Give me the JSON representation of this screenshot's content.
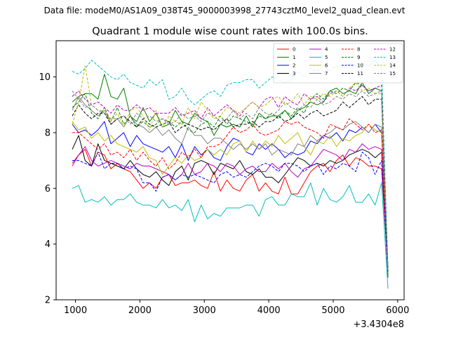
{
  "suptitle": "Data file: modeM0/AS1A09_038T45_9000003998_27743cztM0_level2_quad_clean.evt",
  "chart_data": {
    "type": "line",
    "title": "Quadrant 1 module wise count rates with 100.0s bins.",
    "xlabel": "",
    "ylabel": "",
    "x_offset_label": "+3.4304e8",
    "xlim": [
      700,
      6100
    ],
    "ylim": [
      2,
      11.3
    ],
    "xticks": [
      1000,
      2000,
      3000,
      4000,
      5000,
      6000
    ],
    "xtick_labels": [
      "1000",
      "2000",
      "3000",
      "4000",
      "5000",
      "6000"
    ],
    "yticks": [
      2,
      4,
      6,
      8,
      10
    ],
    "ytick_labels": [
      "2",
      "4",
      "6",
      "8",
      "10"
    ],
    "grid": false,
    "legend_position": "top-right",
    "x": [
      950,
      1050,
      1150,
      1250,
      1350,
      1450,
      1550,
      1650,
      1750,
      1850,
      1950,
      2050,
      2150,
      2250,
      2350,
      2450,
      2550,
      2650,
      2750,
      2850,
      2950,
      3050,
      3150,
      3250,
      3350,
      3450,
      3550,
      3650,
      3750,
      3850,
      3950,
      4050,
      4150,
      4250,
      4350,
      4450,
      4550,
      4650,
      4750,
      4850,
      4950,
      5050,
      5150,
      5250,
      5350,
      5450,
      5550,
      5650,
      5750,
      5850
    ],
    "series": [
      {
        "name": "0",
        "color": "#ff0000",
        "dash": "solid",
        "values": [
          6.9,
          7.2,
          7.4,
          6.8,
          7.3,
          7.2,
          6.7,
          6.9,
          6.7,
          6.6,
          6.3,
          6.0,
          6.2,
          6.0,
          6.4,
          6.5,
          6.1,
          6.2,
          6.2,
          6.3,
          6.1,
          6.0,
          6.6,
          5.9,
          6.3,
          6.0,
          5.9,
          6.3,
          6.5,
          5.9,
          6.2,
          5.9,
          5.8,
          6.4,
          5.8,
          5.8,
          6.2,
          6.6,
          6.8,
          6.9,
          6.6,
          7.0,
          7.2,
          6.8,
          7.1,
          7.0,
          6.8,
          6.8,
          6.7,
          3.1
        ]
      },
      {
        "name": "1",
        "color": "#008000",
        "dash": "solid",
        "values": [
          9.1,
          9.3,
          9.4,
          9.4,
          9.2,
          10.1,
          9.3,
          9.2,
          9.6,
          8.6,
          8.4,
          8.9,
          8.4,
          8.7,
          8.2,
          8.3,
          8.8,
          8.4,
          8.3,
          8.7,
          8.5,
          8.4,
          7.9,
          8.3,
          8.2,
          8.3,
          8.2,
          8.6,
          8.2,
          8.7,
          8.5,
          8.6,
          8.6,
          8.8,
          8.5,
          8.8,
          8.9,
          9.1,
          9.0,
          9.1,
          9.5,
          9.6,
          9.4,
          9.5,
          9.4,
          9.8,
          9.4,
          9.6,
          9.5,
          2.8
        ]
      },
      {
        "name": "2",
        "color": "#0000ff",
        "dash": "solid",
        "values": [
          8.3,
          8.0,
          8.1,
          7.9,
          8.1,
          8.4,
          7.6,
          7.8,
          8.0,
          7.5,
          7.9,
          7.6,
          7.5,
          7.4,
          7.3,
          7.5,
          7.1,
          7.6,
          7.0,
          7.5,
          7.2,
          7.4,
          7.1,
          7.0,
          7.5,
          7.8,
          7.7,
          7.3,
          7.2,
          7.6,
          7.4,
          7.6,
          7.4,
          7.1,
          7.3,
          7.2,
          7.3,
          7.7,
          7.6,
          7.9,
          7.8,
          8.0,
          7.7,
          8.1,
          8.0,
          8.2,
          8.0,
          8.3,
          8.0,
          2.9
        ]
      },
      {
        "name": "3",
        "color": "#000000",
        "dash": "solid",
        "values": [
          7.4,
          7.9,
          7.0,
          6.8,
          7.6,
          7.0,
          6.9,
          6.8,
          6.7,
          7.0,
          6.7,
          6.5,
          6.4,
          6.6,
          6.3,
          6.1,
          6.6,
          6.8,
          6.3,
          6.9,
          7.0,
          6.9,
          6.5,
          6.9,
          6.8,
          6.7,
          7.0,
          6.6,
          6.5,
          6.7,
          6.4,
          6.4,
          6.2,
          6.5,
          6.8,
          7.1,
          7.0,
          6.8,
          6.9,
          6.8,
          7.0,
          6.9,
          7.0,
          7.2,
          7.3,
          7.4,
          7.3,
          7.1,
          7.3,
          2.9
        ]
      },
      {
        "name": "4",
        "color": "#bf00bf",
        "dash": "solid",
        "values": [
          6.8,
          7.2,
          7.5,
          7.0,
          6.8,
          6.9,
          7.0,
          6.9,
          6.8,
          6.7,
          6.9,
          6.8,
          6.8,
          6.7,
          6.6,
          6.5,
          6.3,
          6.5,
          6.9,
          6.5,
          6.6,
          6.9,
          6.8,
          6.6,
          6.9,
          6.8,
          6.5,
          6.7,
          6.8,
          6.6,
          6.6,
          6.9,
          6.7,
          6.9,
          6.6,
          6.4,
          6.7,
          6.8,
          7.1,
          7.4,
          7.3,
          7.2,
          7.0,
          7.4,
          7.3,
          7.6,
          7.4,
          7.5,
          7.4,
          2.8
        ]
      },
      {
        "name": "5",
        "color": "#00bfbf",
        "dash": "solid",
        "values": [
          6.0,
          6.1,
          5.5,
          5.6,
          5.5,
          5.7,
          5.4,
          5.6,
          5.6,
          5.8,
          5.5,
          5.4,
          5.4,
          5.3,
          5.6,
          5.3,
          5.4,
          5.2,
          5.6,
          4.8,
          5.4,
          4.9,
          5.1,
          5.0,
          5.3,
          5.3,
          5.3,
          5.4,
          5.4,
          5.0,
          5.6,
          5.7,
          5.4,
          5.4,
          5.8,
          5.7,
          5.7,
          6.2,
          5.4,
          6.0,
          5.6,
          5.5,
          5.7,
          6.1,
          5.5,
          5.5,
          5.8,
          5.4,
          6.2,
          2.4
        ]
      },
      {
        "name": "6",
        "color": "#bfbf00",
        "dash": "solid",
        "values": [
          8.4,
          8.1,
          8.2,
          7.8,
          8.0,
          7.7,
          7.9,
          7.6,
          7.5,
          7.4,
          7.3,
          7.5,
          7.1,
          7.0,
          6.5,
          6.8,
          7.1,
          6.9,
          7.2,
          7.0,
          7.1,
          7.4,
          7.2,
          7.4,
          7.2,
          7.6,
          7.7,
          7.3,
          7.7,
          7.4,
          7.7,
          7.5,
          7.9,
          7.6,
          7.8,
          8.0,
          7.5,
          7.2,
          7.7,
          7.6,
          7.9,
          7.5,
          7.8,
          7.7,
          7.9,
          8.0,
          8.3,
          8.1,
          8.0,
          2.9
        ]
      },
      {
        "name": "7",
        "color": "#808080",
        "dash": "solid",
        "values": [
          8.8,
          9.3,
          9.0,
          8.8,
          8.6,
          8.8,
          8.3,
          8.5,
          8.2,
          8.6,
          8.3,
          8.2,
          8.0,
          8.2,
          7.9,
          8.1,
          7.8,
          7.6,
          8.2,
          7.9,
          7.9,
          7.6,
          7.8,
          7.8,
          7.6,
          7.4,
          7.6,
          7.4,
          7.6,
          7.4,
          7.6,
          7.2,
          7.4,
          7.3,
          7.2,
          7.6,
          7.5,
          7.9,
          7.7,
          7.9,
          8.0,
          8.2,
          8.1,
          8.3,
          8.4,
          8.2,
          8.0,
          8.3,
          8.2,
          3.0
        ]
      },
      {
        "name": "8",
        "color": "#ff0000",
        "dash": "dashed",
        "values": [
          8.0,
          8.0,
          7.8,
          7.6,
          7.4,
          7.6,
          7.2,
          7.3,
          7.1,
          7.4,
          7.0,
          7.3,
          7.0,
          6.8,
          7.1,
          6.7,
          6.9,
          7.3,
          7.1,
          7.4,
          7.1,
          7.5,
          7.5,
          7.6,
          7.9,
          8.2,
          8.0,
          8.1,
          8.3,
          8.0,
          7.9,
          8.0,
          8.1,
          8.4,
          8.3,
          8.4,
          8.2,
          8.1,
          8.0,
          7.8,
          8.3,
          8.2,
          8.1,
          8.5,
          8.3,
          8.1,
          8.3,
          8.0,
          8.1,
          3.0
        ]
      },
      {
        "name": "9",
        "color": "#008000",
        "dash": "dashed",
        "values": [
          8.9,
          9.1,
          9.4,
          8.7,
          8.5,
          8.9,
          8.4,
          8.9,
          8.3,
          8.6,
          8.2,
          8.4,
          8.2,
          8.3,
          8.5,
          8.4,
          8.2,
          8.4,
          8.1,
          8.0,
          8.3,
          8.4,
          8.2,
          8.6,
          8.3,
          8.6,
          8.5,
          8.4,
          8.3,
          8.6,
          8.5,
          8.7,
          8.5,
          8.8,
          8.6,
          8.9,
          8.7,
          9.2,
          9.4,
          9.2,
          9.5,
          9.4,
          9.6,
          9.5,
          9.8,
          9.7,
          9.5,
          9.6,
          9.5,
          2.9
        ]
      },
      {
        "name": "10",
        "color": "#0000ff",
        "dash": "dashed",
        "values": [
          7.0,
          7.0,
          6.9,
          6.8,
          7.3,
          6.7,
          6.9,
          6.9,
          6.7,
          6.8,
          6.7,
          6.2,
          6.2,
          5.9,
          6.4,
          6.5,
          6.3,
          6.5,
          6.4,
          6.5,
          6.4,
          6.3,
          6.2,
          6.5,
          6.6,
          6.4,
          6.5,
          6.4,
          6.6,
          6.8,
          6.9,
          6.8,
          6.6,
          6.9,
          6.9,
          6.8,
          6.6,
          6.8,
          6.9,
          6.5,
          6.8,
          6.7,
          6.9,
          6.8,
          6.6,
          7.3,
          7.1,
          6.5,
          7.0,
          3.0
        ]
      },
      {
        "name": "11",
        "color": "#000000",
        "dash": "dashed",
        "values": [
          8.6,
          9.0,
          8.7,
          8.5,
          8.7,
          8.7,
          8.3,
          8.5,
          8.6,
          8.4,
          8.2,
          8.5,
          8.3,
          8.2,
          8.3,
          8.4,
          8.0,
          8.2,
          8.3,
          8.2,
          8.1,
          8.2,
          8.1,
          8.3,
          8.5,
          8.2,
          8.3,
          8.3,
          8.4,
          8.2,
          8.4,
          8.4,
          8.6,
          8.4,
          8.5,
          8.7,
          8.5,
          8.7,
          8.8,
          8.6,
          8.7,
          8.8,
          9.1,
          8.9,
          9.1,
          9.3,
          9.0,
          9.2,
          9.2,
          3.0
        ]
      },
      {
        "name": "12",
        "color": "#bf00bf",
        "dash": "dashed",
        "values": [
          9.3,
          9.5,
          9.2,
          9.0,
          9.1,
          8.9,
          8.7,
          9.0,
          8.8,
          8.8,
          9.0,
          8.8,
          8.9,
          8.7,
          8.7,
          8.7,
          8.9,
          8.6,
          8.7,
          8.8,
          8.5,
          8.9,
          8.6,
          8.8,
          9.0,
          8.8,
          8.6,
          8.9,
          9.1,
          8.9,
          9.2,
          9.3,
          8.9,
          9.3,
          9.1,
          9.0,
          9.4,
          9.2,
          9.3,
          9.1,
          9.4,
          9.5,
          9.3,
          9.6,
          9.5,
          9.7,
          9.5,
          9.6,
          9.7,
          3.1
        ]
      },
      {
        "name": "13",
        "color": "#00bfbf",
        "dash": "dashed",
        "values": [
          10.2,
          10.1,
          10.3,
          10.6,
          10.4,
          10.2,
          10.0,
          9.9,
          10.1,
          9.8,
          9.7,
          9.6,
          9.9,
          9.7,
          9.9,
          9.2,
          9.3,
          9.6,
          9.2,
          9.0,
          9.2,
          9.4,
          9.5,
          9.3,
          9.7,
          9.8,
          9.8,
          9.9,
          9.9,
          9.6,
          9.8,
          10.0,
          9.9,
          9.8,
          9.9,
          10.2,
          10.0,
          10.3,
          10.2,
          10.4,
          10.2,
          10.4,
          10.3,
          10.5,
          10.4,
          10.5,
          10.4,
          10.6,
          10.3,
          3.2
        ]
      },
      {
        "name": "14",
        "color": "#bfbf00",
        "dash": "dashed",
        "values": [
          8.3,
          9.1,
          10.4,
          9.0,
          8.8,
          8.8,
          8.4,
          8.7,
          8.2,
          8.8,
          8.9,
          8.6,
          8.1,
          8.8,
          8.2,
          8.6,
          8.4,
          8.3,
          8.9,
          8.5,
          9.1,
          8.8,
          8.5,
          8.6,
          8.9,
          8.8,
          8.7,
          8.9,
          9.1,
          8.9,
          9.0,
          9.2,
          9.3,
          9.0,
          9.1,
          9.4,
          9.0,
          9.3,
          9.2,
          9.4,
          9.3,
          9.5,
          9.3,
          9.6,
          9.8,
          9.5,
          9.6,
          9.4,
          9.4,
          3.0
        ]
      },
      {
        "name": "15",
        "color": "#808080",
        "dash": "dashed",
        "values": [
          9.5,
          9.2,
          8.9,
          9.0,
          8.8,
          8.7,
          8.5,
          8.5,
          8.6,
          8.3,
          8.7,
          8.5,
          8.6,
          8.4,
          8.5,
          8.3,
          8.4,
          8.7,
          8.5,
          8.6,
          8.4,
          8.7,
          8.6,
          8.4,
          8.5,
          8.8,
          8.5,
          8.7,
          8.5,
          8.9,
          8.7,
          8.6,
          8.8,
          9.1,
          8.9,
          8.8,
          9.0,
          8.9,
          9.2,
          9.0,
          9.1,
          9.3,
          9.2,
          9.4,
          9.3,
          9.5,
          9.3,
          9.4,
          9.5,
          3.1
        ]
      }
    ]
  }
}
